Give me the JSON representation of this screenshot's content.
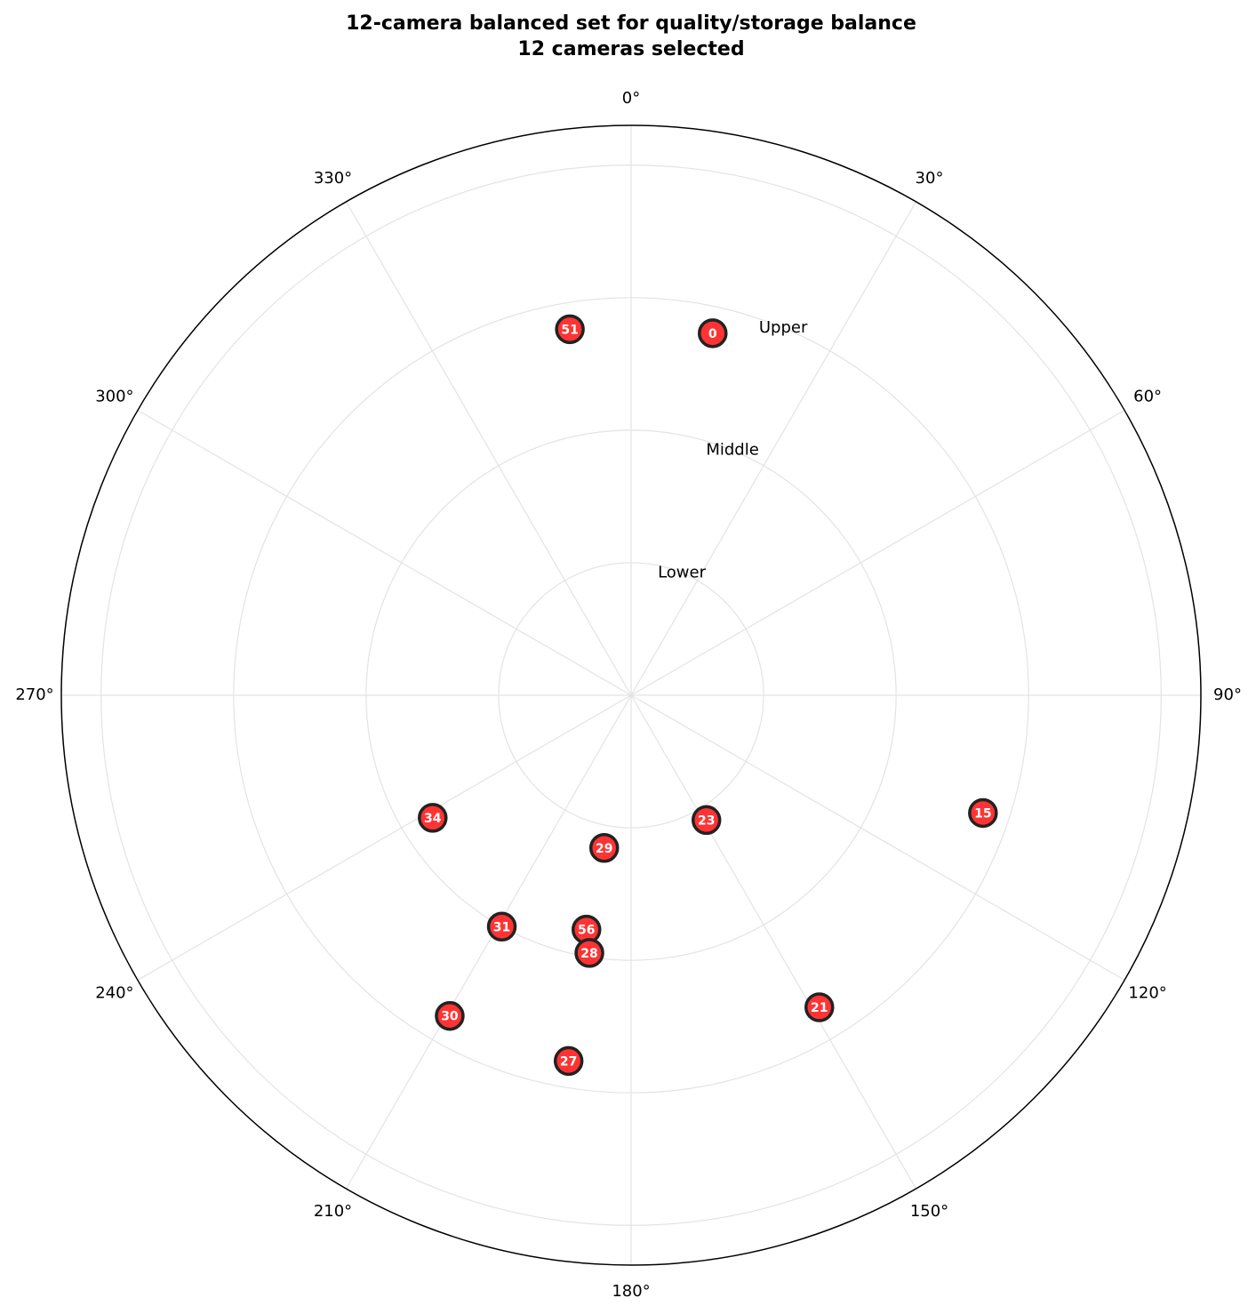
{
  "chart_data": {
    "type": "scatter",
    "projection": "polar",
    "title": "12-camera balanced set for quality/storage balance",
    "subtitle": "12 cameras selected",
    "theta_zero": "top",
    "theta_direction": "clockwise",
    "theta_ticks": [
      "0°",
      "30°",
      "60°",
      "90°",
      "120°",
      "150°",
      "180°",
      "210°",
      "240°",
      "270°",
      "300°",
      "330°"
    ],
    "rings": [
      {
        "label": "Lower",
        "r": 1
      },
      {
        "label": "Middle",
        "r": 2
      },
      {
        "label": "Upper",
        "r": 3
      }
    ],
    "r_grid": [
      1,
      2,
      3,
      4
    ],
    "r_max": 4.3,
    "grid": true,
    "marker_color": "#ff3333",
    "marker_edge_color": "#222222",
    "points": [
      {
        "label": "0",
        "theta": 12.7,
        "r": 2.8
      },
      {
        "label": "51",
        "theta": 350.5,
        "r": 2.8
      },
      {
        "label": "15",
        "theta": 108.5,
        "r": 2.8
      },
      {
        "label": "23",
        "theta": 148.9,
        "r": 1.1
      },
      {
        "label": "21",
        "theta": 148.9,
        "r": 2.75
      },
      {
        "label": "29",
        "theta": 190.0,
        "r": 1.17
      },
      {
        "label": "34",
        "theta": 238.3,
        "r": 1.76
      },
      {
        "label": "31",
        "theta": 209.2,
        "r": 2.0
      },
      {
        "label": "56",
        "theta": 190.8,
        "r": 1.8
      },
      {
        "label": "28",
        "theta": 189.2,
        "r": 1.97
      },
      {
        "label": "30",
        "theta": 209.5,
        "r": 2.78
      },
      {
        "label": "27",
        "theta": 189.7,
        "r": 2.8
      }
    ]
  }
}
